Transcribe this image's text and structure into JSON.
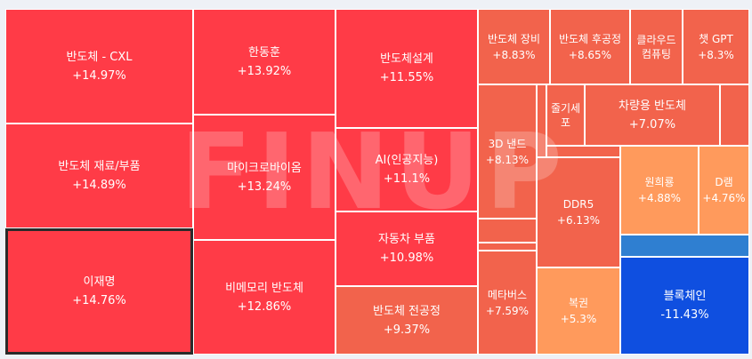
{
  "watermark": "FINUP",
  "chart_data": {
    "type": "treemap",
    "colors": {
      "strong_up": "#ff3b47",
      "mid_up": "#f2634c",
      "weak_up": "#ff9a5c",
      "neutral_blue": "#2f7fd1",
      "down": "#0f4fe0"
    },
    "tiles": [
      {
        "id": "cxl",
        "name": "반도체 - CXL",
        "change": "+14.97%",
        "value": 14.97
      },
      {
        "id": "mat",
        "name": "반도체 재료/부품",
        "change": "+14.89%",
        "value": 14.89
      },
      {
        "id": "ljm",
        "name": "이재명",
        "change": "+14.76%",
        "value": 14.76,
        "selected": true
      },
      {
        "id": "hds",
        "name": "한동훈",
        "change": "+13.92%",
        "value": 13.92
      },
      {
        "id": "mbio",
        "name": "마이크로바이옴",
        "change": "+13.24%",
        "value": 13.24
      },
      {
        "id": "nmem",
        "name": "비메모리 반도체",
        "change": "+12.86%",
        "value": 12.86
      },
      {
        "id": "design",
        "name": "반도체설계",
        "change": "+11.55%",
        "value": 11.55
      },
      {
        "id": "ai",
        "name": "AI(인공지능)",
        "change": "+11.1%",
        "value": 11.1
      },
      {
        "id": "auto",
        "name": "자동차 부품",
        "change": "+10.98%",
        "value": 10.98
      },
      {
        "id": "pre",
        "name": "반도체 전공정",
        "change": "+9.37%",
        "value": 9.37
      },
      {
        "id": "equip",
        "name": "반도체 장비",
        "change": "+8.83%",
        "value": 8.83
      },
      {
        "id": "post",
        "name": "반도체 후공정",
        "change": "+8.65%",
        "value": 8.65
      },
      {
        "id": "cloud",
        "name": "클라우드 컴퓨팅",
        "change": "",
        "value": null
      },
      {
        "id": "gpt",
        "name": "챗 GPT",
        "change": "+8.3%",
        "value": 8.3
      },
      {
        "id": "nand",
        "name": "3D 낸드",
        "change": "+8.13%",
        "value": 8.13
      },
      {
        "id": "stem",
        "name": "줄기세포",
        "change": "",
        "value": null
      },
      {
        "id": "car",
        "name": "차량용 반도체",
        "change": "+7.07%",
        "value": 7.07
      },
      {
        "id": "ddr5",
        "name": "DDR5",
        "change": "+6.13%",
        "value": 6.13
      },
      {
        "id": "nuke",
        "name": "원희룡",
        "change": "+4.88%",
        "value": 4.88
      },
      {
        "id": "dram",
        "name": "D램",
        "change": "+4.76%",
        "value": 4.76
      },
      {
        "id": "meta",
        "name": "메타버스",
        "change": "+7.59%",
        "value": 7.59
      },
      {
        "id": "lotto",
        "name": "복권",
        "change": "+5.3%",
        "value": 5.3
      },
      {
        "id": "block",
        "name": "블록체인",
        "change": "-11.43%",
        "value": -11.43
      }
    ]
  }
}
